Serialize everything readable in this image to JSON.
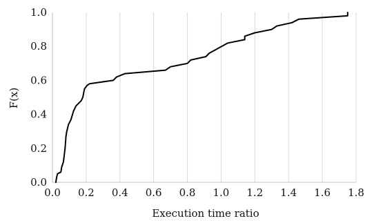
{
  "chart_data": {
    "type": "line",
    "title": "",
    "xlabel": "Execution time ratio",
    "ylabel": "F(x)",
    "xlim": [
      0,
      1.8
    ],
    "ylim": [
      0,
      1.0
    ],
    "x_ticks": [
      "0.0",
      "0.2",
      "0.4",
      "0.6",
      "0.8",
      "1.0",
      "1.2",
      "1.4",
      "1.6",
      "1.8"
    ],
    "y_ticks": [
      "0.0",
      "0.2",
      "0.4",
      "0.6",
      "0.8",
      "1.0"
    ],
    "grid": "vertical",
    "legend": "none",
    "line_color": "#000000",
    "grid_color": "#d9d9d9",
    "series": [
      {
        "x": [
          0.02,
          0.025,
          0.03,
          0.05,
          0.055,
          0.065,
          0.07,
          0.075,
          0.08,
          0.085,
          0.095,
          0.105,
          0.11,
          0.125,
          0.14,
          0.16,
          0.17,
          0.175,
          0.18,
          0.19,
          0.205,
          0.22,
          0.36,
          0.38,
          0.43,
          0.67,
          0.7,
          0.8,
          0.82,
          0.91,
          0.93,
          1.04,
          1.14,
          1.14,
          1.2,
          1.3,
          1.33,
          1.42,
          1.46,
          1.75,
          1.75
        ],
        "y": [
          0.0,
          0.03,
          0.05,
          0.06,
          0.09,
          0.12,
          0.16,
          0.2,
          0.27,
          0.3,
          0.34,
          0.36,
          0.37,
          0.42,
          0.45,
          0.47,
          0.48,
          0.49,
          0.5,
          0.55,
          0.57,
          0.58,
          0.6,
          0.62,
          0.64,
          0.66,
          0.68,
          0.7,
          0.72,
          0.74,
          0.76,
          0.82,
          0.84,
          0.86,
          0.88,
          0.9,
          0.92,
          0.94,
          0.96,
          0.98,
          1.0
        ]
      }
    ]
  }
}
